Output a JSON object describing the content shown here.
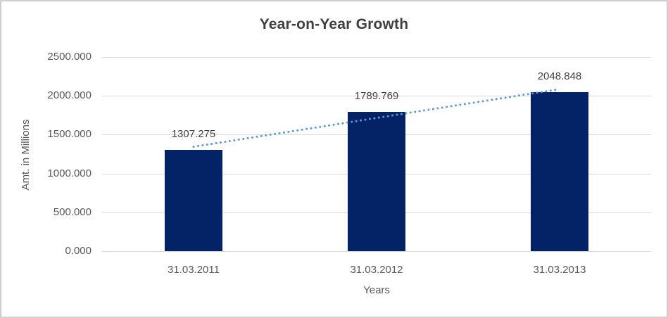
{
  "chart_data": {
    "type": "bar",
    "title": "Year-on-Year Growth",
    "xlabel": "Years",
    "ylabel": "Amt. in Millions",
    "categories": [
      "31.03.2011",
      "31.03.2012",
      "31.03.2013"
    ],
    "values": [
      1307.275,
      1789.769,
      2048.848
    ],
    "value_labels": [
      "1307.275",
      "1789.769",
      "2048.848"
    ],
    "ylim": [
      0,
      2500
    ],
    "yticks": [
      0,
      500,
      1000,
      1500,
      2000,
      2500
    ],
    "ytick_labels": [
      "0.000",
      "500.000",
      "1000.000",
      "1500.000",
      "2000.000",
      "2500.000"
    ],
    "grid": true,
    "legend": "none",
    "trendline": {
      "style": "dotted",
      "start_value": 1344.5,
      "end_value": 2086.1
    },
    "colors": {
      "bar": "#042366",
      "trendline": "#5b9bd5",
      "gridline": "#d9d9d9",
      "title_text": "#3f3f3f",
      "axis_text": "#595959",
      "value_label_text": "#404040"
    }
  }
}
